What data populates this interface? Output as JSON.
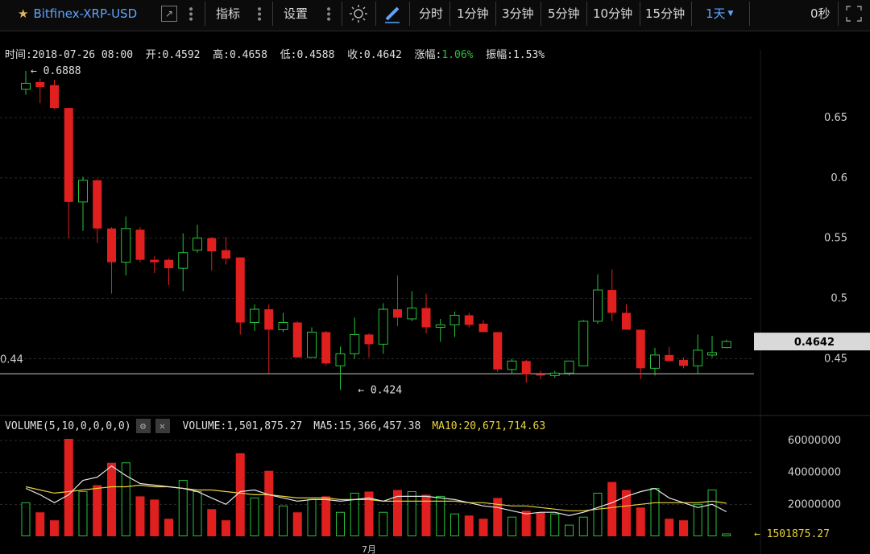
{
  "toolbar": {
    "symbol": "Bitfinex-XRP-USD",
    "indicators_label": "指标",
    "settings_label": "设置",
    "timeframes": [
      "分时",
      "1分钟",
      "3分钟",
      "5分钟",
      "10分钟",
      "15分钟"
    ],
    "active_timeframe": "1天",
    "countdown": "0秒"
  },
  "info": {
    "time_label": "时间:",
    "time": "2018-07-26 08:00",
    "open_label": "开:",
    "open": "0.4592",
    "high_label": "高:",
    "high": "0.4658",
    "low_label": "低:",
    "low": "0.4588",
    "close_label": "收:",
    "close": "0.4642",
    "change_label": "涨幅:",
    "change": "1.06%",
    "amplitude_label": "振幅:",
    "amplitude": "1.53%"
  },
  "volume_info": {
    "label": "VOLUME(5,10,0,0,0,0)",
    "volume_label": "VOLUME:",
    "volume": "1,501,875.27",
    "ma5_label": "MA5:",
    "ma5": "15,366,457.38",
    "ma10_label": "MA10:",
    "ma10": "20,671,714.63"
  },
  "colors": {
    "up": "#27c23b",
    "down": "#e01f1f",
    "ma5": "#e6e6e6",
    "ma10": "#e7d23a",
    "grid": "#2b2b2b"
  },
  "chart_data": {
    "type": "candlestick",
    "price_ticks": [
      0.65,
      0.6,
      0.55,
      0.5,
      0.45
    ],
    "price_tick_labels": [
      "0.65",
      "0.6",
      "0.55",
      "0.5",
      "0.45"
    ],
    "price_range": [
      0.4135,
      0.6955
    ],
    "current_price": "0.4642",
    "left_price_label": "0.44",
    "low_line_price": 0.4375,
    "max_annotation": {
      "index": 0,
      "price": 0.6888,
      "label": "0.6888"
    },
    "min_annotation": {
      "index": 23,
      "price": 0.424,
      "label": "0.424"
    },
    "x_tick_label": "7月",
    "x_tick_index": 24,
    "candles": [
      {
        "o": 0.6735,
        "c": 0.6785,
        "h": 0.6888,
        "l": 0.669
      },
      {
        "o": 0.6795,
        "c": 0.6755,
        "h": 0.6825,
        "l": 0.662
      },
      {
        "o": 0.677,
        "c": 0.658,
        "h": 0.6815,
        "l": 0.657
      },
      {
        "o": 0.658,
        "c": 0.58,
        "h": 0.658,
        "l": 0.55
      },
      {
        "o": 0.58,
        "c": 0.598,
        "h": 0.601,
        "l": 0.556
      },
      {
        "o": 0.598,
        "c": 0.558,
        "h": 0.599,
        "l": 0.546
      },
      {
        "o": 0.558,
        "c": 0.53,
        "h": 0.559,
        "l": 0.504
      },
      {
        "o": 0.53,
        "c": 0.558,
        "h": 0.568,
        "l": 0.519
      },
      {
        "o": 0.557,
        "c": 0.532,
        "h": 0.559,
        "l": 0.53
      },
      {
        "o": 0.532,
        "c": 0.53,
        "h": 0.535,
        "l": 0.521
      },
      {
        "o": 0.532,
        "c": 0.525,
        "h": 0.533,
        "l": 0.511
      },
      {
        "o": 0.525,
        "c": 0.538,
        "h": 0.554,
        "l": 0.506
      },
      {
        "o": 0.54,
        "c": 0.55,
        "h": 0.561,
        "l": 0.538
      },
      {
        "o": 0.55,
        "c": 0.539,
        "h": 0.551,
        "l": 0.523
      },
      {
        "o": 0.54,
        "c": 0.533,
        "h": 0.551,
        "l": 0.528
      },
      {
        "o": 0.534,
        "c": 0.48,
        "h": 0.534,
        "l": 0.47
      },
      {
        "o": 0.48,
        "c": 0.491,
        "h": 0.495,
        "l": 0.473
      },
      {
        "o": 0.491,
        "c": 0.474,
        "h": 0.495,
        "l": 0.438
      },
      {
        "o": 0.474,
        "c": 0.48,
        "h": 0.488,
        "l": 0.472
      },
      {
        "o": 0.48,
        "c": 0.451,
        "h": 0.481,
        "l": 0.451
      },
      {
        "o": 0.451,
        "c": 0.472,
        "h": 0.476,
        "l": 0.452
      },
      {
        "o": 0.472,
        "c": 0.446,
        "h": 0.473,
        "l": 0.444
      },
      {
        "o": 0.444,
        "c": 0.454,
        "h": 0.46,
        "l": 0.424
      },
      {
        "o": 0.454,
        "c": 0.47,
        "h": 0.484,
        "l": 0.45
      },
      {
        "o": 0.47,
        "c": 0.462,
        "h": 0.471,
        "l": 0.451
      },
      {
        "o": 0.462,
        "c": 0.491,
        "h": 0.496,
        "l": 0.454
      },
      {
        "o": 0.491,
        "c": 0.484,
        "h": 0.519,
        "l": 0.477
      },
      {
        "o": 0.483,
        "c": 0.492,
        "h": 0.506,
        "l": 0.481
      },
      {
        "o": 0.492,
        "c": 0.476,
        "h": 0.504,
        "l": 0.471
      },
      {
        "o": 0.476,
        "c": 0.478,
        "h": 0.483,
        "l": 0.464
      },
      {
        "o": 0.478,
        "c": 0.486,
        "h": 0.489,
        "l": 0.468
      },
      {
        "o": 0.486,
        "c": 0.478,
        "h": 0.488,
        "l": 0.476
      },
      {
        "o": 0.479,
        "c": 0.472,
        "h": 0.482,
        "l": 0.472
      },
      {
        "o": 0.472,
        "c": 0.441,
        "h": 0.472,
        "l": 0.439
      },
      {
        "o": 0.441,
        "c": 0.448,
        "h": 0.45,
        "l": 0.438
      },
      {
        "o": 0.448,
        "c": 0.437,
        "h": 0.449,
        "l": 0.43
      },
      {
        "o": 0.437,
        "c": 0.436,
        "h": 0.44,
        "l": 0.433
      },
      {
        "o": 0.436,
        "c": 0.438,
        "h": 0.44,
        "l": 0.434
      },
      {
        "o": 0.438,
        "c": 0.448,
        "h": 0.448,
        "l": 0.436
      },
      {
        "o": 0.444,
        "c": 0.481,
        "h": 0.482,
        "l": 0.444
      },
      {
        "o": 0.481,
        "c": 0.507,
        "h": 0.52,
        "l": 0.479
      },
      {
        "o": 0.507,
        "c": 0.488,
        "h": 0.524,
        "l": 0.481
      },
      {
        "o": 0.488,
        "c": 0.474,
        "h": 0.495,
        "l": 0.474
      },
      {
        "o": 0.474,
        "c": 0.442,
        "h": 0.474,
        "l": 0.433
      },
      {
        "o": 0.442,
        "c": 0.453,
        "h": 0.459,
        "l": 0.436
      },
      {
        "o": 0.453,
        "c": 0.448,
        "h": 0.46,
        "l": 0.448
      },
      {
        "o": 0.449,
        "c": 0.444,
        "h": 0.451,
        "l": 0.442
      },
      {
        "o": 0.444,
        "c": 0.457,
        "h": 0.47,
        "l": 0.438
      },
      {
        "o": 0.453,
        "c": 0.455,
        "h": 0.469,
        "l": 0.451
      },
      {
        "o": 0.4592,
        "c": 0.4642,
        "h": 0.4658,
        "l": 0.4588
      }
    ],
    "volume_ticks": [
      60000000,
      40000000,
      20000000
    ],
    "volume_tick_labels": [
      "60000000",
      "40000000",
      "20000000"
    ],
    "volume_range": [
      0,
      61000000
    ],
    "volume_current_label": "1501875.27",
    "volumes": [
      21000000,
      15000000,
      10000000,
      61000000,
      28000000,
      32000000,
      46000000,
      46000000,
      25000000,
      23000000,
      11000000,
      35000000,
      28000000,
      17000000,
      10000000,
      52000000,
      24000000,
      41000000,
      19000000,
      15000000,
      23000000,
      25000000,
      15000000,
      27000000,
      28000000,
      15000000,
      29000000,
      28000000,
      26000000,
      25000000,
      14000000,
      13000000,
      11000000,
      24000000,
      12000000,
      16000000,
      15000000,
      14000000,
      7000000,
      12000000,
      27000000,
      34000000,
      29000000,
      18000000,
      30000000,
      11000000,
      10000000,
      20000000,
      29000000,
      1501875.27
    ],
    "ma5": [
      30000000,
      26000000,
      21000000,
      26000000,
      35000000,
      37000000,
      44000000,
      38000000,
      33000000,
      32000000,
      31000000,
      30000000,
      28000000,
      24000000,
      20000000,
      28000000,
      29000000,
      26000000,
      24000000,
      22000000,
      23000000,
      23000000,
      22000000,
      23000000,
      24000000,
      22000000,
      25000000,
      25000000,
      25000000,
      24000000,
      23000000,
      21000000,
      19000000,
      18000000,
      16000000,
      14000000,
      15000000,
      15000000,
      13000000,
      15000000,
      18000000,
      21000000,
      25000000,
      28000000,
      30000000,
      24000000,
      21000000,
      18000000,
      20000000,
      15366457.38
    ],
    "ma10": [
      31000000,
      29000000,
      27000000,
      28000000,
      29000000,
      30000000,
      31000000,
      31000000,
      32000000,
      31000000,
      31000000,
      30000000,
      29000000,
      29000000,
      28000000,
      27000000,
      26000000,
      26000000,
      25000000,
      24000000,
      24000000,
      24000000,
      23000000,
      23000000,
      23000000,
      22000000,
      22000000,
      22000000,
      22000000,
      22000000,
      22000000,
      21000000,
      21000000,
      20000000,
      19000000,
      19000000,
      18000000,
      17000000,
      16000000,
      16000000,
      17000000,
      18000000,
      19000000,
      20000000,
      21000000,
      21000000,
      21000000,
      21000000,
      22000000,
      20671714.63
    ]
  }
}
